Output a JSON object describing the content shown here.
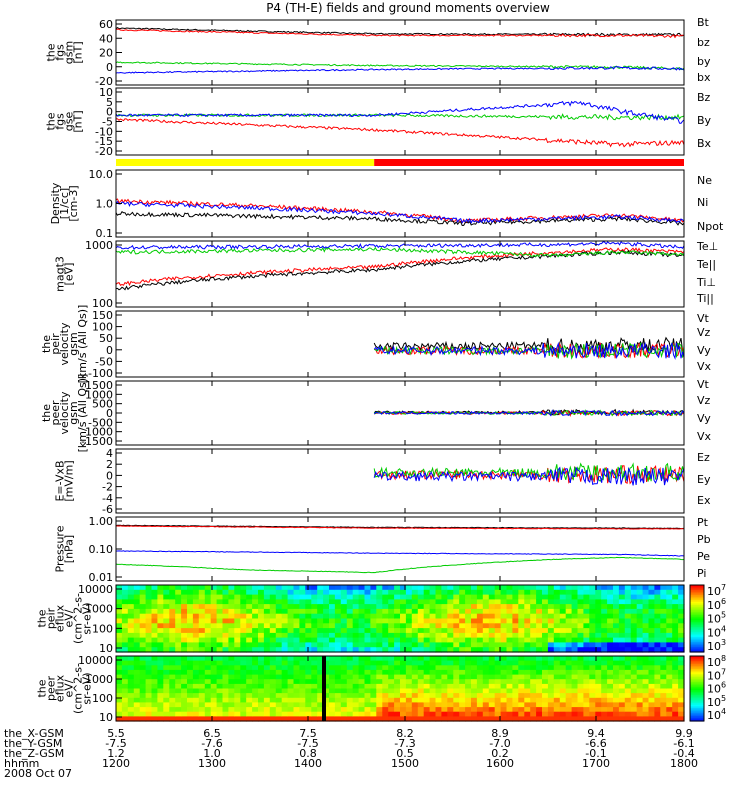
{
  "title": "P4 (TH-E) fields and ground moments overview",
  "colors": {
    "black": "#000000",
    "red": "#ff0000",
    "green": "#00cc00",
    "blue": "#0000ff",
    "yellow": "#ffff00"
  },
  "chart_data": [
    {
      "type": "line",
      "ylabel": [
        "the",
        "fgs",
        "gsm",
        "[nT]"
      ],
      "yticks": [
        "60",
        "40",
        "20",
        "0",
        "-20"
      ],
      "ylim": [
        -20,
        60
      ],
      "series": [
        {
          "name": "Bt",
          "color": "black",
          "x": [
            5.5,
            7.5,
            9.4,
            9.9
          ],
          "values": [
            50,
            43,
            42,
            42
          ]
        },
        {
          "name": "bz",
          "color": "red",
          "x": [
            5.5,
            7.5,
            9.4,
            9.9
          ],
          "values": [
            48,
            41,
            41,
            40
          ]
        },
        {
          "name": "by",
          "color": "green",
          "x": [
            5.5,
            7.5,
            9.4,
            9.9
          ],
          "values": [
            8,
            4,
            2,
            0
          ]
        },
        {
          "name": "bx",
          "color": "blue",
          "x": [
            5.5,
            7.5,
            8.2,
            9.4,
            9.9
          ],
          "values": [
            -5,
            -1,
            0,
            1,
            0
          ]
        }
      ]
    },
    {
      "type": "line",
      "ylabel": [
        "the",
        "fgs",
        "gse",
        "[nT]"
      ],
      "yticks": [
        "10",
        "5",
        "0",
        "-5",
        "-10",
        "-15",
        "-20"
      ],
      "ylim": [
        -20,
        12
      ],
      "series": [
        {
          "name": "Bz",
          "color": "red",
          "x": [
            5.5,
            7.5,
            8.9,
            9.4,
            9.9
          ],
          "values": [
            -3,
            -8,
            -13,
            -15,
            -14
          ]
        },
        {
          "name": "By",
          "color": "green",
          "x": [
            5.5,
            7.5,
            9.4,
            9.9
          ],
          "values": [
            -1,
            -1,
            -2,
            -2
          ]
        },
        {
          "name": "Bx",
          "color": "blue",
          "x": [
            5.5,
            7.5,
            9.1,
            9.4,
            9.9
          ],
          "values": [
            -1,
            -1,
            5,
            1,
            -4
          ]
        }
      ]
    },
    {
      "type": "line",
      "log": true,
      "ylabel": [
        "Density",
        "[1/cc]",
        "[cm-3]"
      ],
      "yticks": [
        "10.0",
        "1.0",
        "0.1"
      ],
      "ylim": [
        0.1,
        10
      ],
      "series": [
        {
          "name": "Ne",
          "color": "red",
          "x": [
            5.5,
            7.5,
            8.2,
            9.4,
            9.9
          ],
          "values": [
            1.2,
            0.55,
            0.3,
            0.45,
            0.3
          ]
        },
        {
          "name": "Ni",
          "color": "black",
          "x": [
            5.5,
            7.5,
            8.2,
            9.4,
            9.9
          ],
          "values": [
            0.5,
            0.35,
            0.25,
            0.35,
            0.25
          ]
        },
        {
          "name": "Npot",
          "color": "blue",
          "x": [
            5.5,
            7.5,
            8.2,
            9.4,
            9.9
          ],
          "values": [
            1.0,
            0.5,
            0.3,
            0.4,
            0.3
          ]
        }
      ]
    },
    {
      "type": "line",
      "log": true,
      "ylabel": [
        "magt3",
        "[eV]"
      ],
      "yticks": [
        "1000",
        "100"
      ],
      "ylim": [
        50,
        3000
      ],
      "series": [
        {
          "name": "Te⊥",
          "color": "red",
          "x": [
            5.5,
            7.5,
            8.9,
            9.4,
            9.9
          ],
          "values": [
            200,
            600,
            1500,
            1800,
            1500
          ]
        },
        {
          "name": "Te||",
          "color": "black",
          "x": [
            5.5,
            7.5,
            8.9,
            9.4,
            9.9
          ],
          "values": [
            150,
            500,
            1200,
            1500,
            1200
          ]
        },
        {
          "name": "Ti⊥",
          "color": "blue",
          "x": [
            5.5,
            7.5,
            8.9,
            9.4,
            9.9
          ],
          "values": [
            2000,
            2200,
            2400,
            2600,
            2000
          ]
        },
        {
          "name": "Ti||",
          "color": "green",
          "x": [
            5.5,
            7.5,
            8.9,
            9.4,
            9.9
          ],
          "values": [
            1500,
            1800,
            1200,
            1500,
            1300
          ]
        }
      ]
    },
    {
      "type": "line",
      "ylabel": [
        "the",
        "peir",
        "velocity",
        "gsm",
        "[km/s (All Qs)]"
      ],
      "yticks": [
        "150",
        "100",
        "50",
        "0",
        "-50",
        "-100"
      ],
      "ylim": [
        -100,
        150
      ],
      "series": [
        {
          "name": "Vt",
          "color": "black",
          "x": [
            7.5,
            9.9
          ],
          "values": [
            15,
            20
          ]
        },
        {
          "name": "Vz",
          "color": "red",
          "x": [
            7.5,
            9.9
          ],
          "values": [
            0,
            0
          ]
        },
        {
          "name": "Vy",
          "color": "green",
          "x": [
            7.5,
            9.9
          ],
          "values": [
            0,
            0
          ]
        },
        {
          "name": "Vx",
          "color": "blue",
          "x": [
            7.5,
            9.9
          ],
          "values": [
            0,
            0
          ]
        }
      ]
    },
    {
      "type": "line",
      "ylabel": [
        "the",
        "peer",
        "velocity",
        "gsm",
        "[km/s (All Qs)]"
      ],
      "yticks": [
        "1500",
        "1000",
        "500",
        "0",
        "-500",
        "-1000",
        "-1500"
      ],
      "ylim": [
        -1500,
        1500
      ],
      "series": [
        {
          "name": "Vt",
          "color": "black",
          "x": [
            7.5,
            9.9
          ],
          "values": [
            30,
            40
          ]
        },
        {
          "name": "Vz",
          "color": "red",
          "x": [
            7.5,
            9.9
          ],
          "values": [
            0,
            0
          ]
        },
        {
          "name": "Vy",
          "color": "green",
          "x": [
            7.5,
            9.9
          ],
          "values": [
            0,
            0
          ]
        },
        {
          "name": "Vx",
          "color": "blue",
          "x": [
            7.5,
            9.9
          ],
          "values": [
            0,
            0
          ]
        }
      ]
    },
    {
      "type": "line",
      "ylabel": [
        "E=-VxB",
        "[mV/m]"
      ],
      "yticks": [
        "4",
        "2",
        "0",
        "-2",
        "-4",
        "-6"
      ],
      "ylim": [
        -6,
        4
      ],
      "series": [
        {
          "name": "Ez",
          "color": "red",
          "x": [
            7.5,
            9.9
          ],
          "values": [
            0,
            0
          ]
        },
        {
          "name": "Ey",
          "color": "green",
          "x": [
            7.5,
            9.9
          ],
          "values": [
            0.3,
            0.3
          ]
        },
        {
          "name": "Ex",
          "color": "blue",
          "x": [
            7.5,
            9.9
          ],
          "values": [
            -0.3,
            -0.3
          ]
        }
      ]
    },
    {
      "type": "line",
      "log": true,
      "ylabel": [
        "Pressure",
        "[nPa]"
      ],
      "yticks": [
        "1.00",
        "0.10",
        "0.01"
      ],
      "ylim": [
        0.01,
        2
      ],
      "series": [
        {
          "name": "Pt",
          "color": "black",
          "x": [
            5.5,
            7.5,
            9.4,
            9.9
          ],
          "values": [
            1.0,
            0.85,
            0.8,
            0.78
          ]
        },
        {
          "name": "Pb",
          "color": "red",
          "x": [
            5.5,
            7.5,
            9.4,
            9.9
          ],
          "values": [
            0.95,
            0.8,
            0.75,
            0.75
          ]
        },
        {
          "name": "Pe",
          "color": "green",
          "x": [
            5.5,
            6.5,
            7.5,
            8.2,
            8.9,
            9.4,
            9.9
          ],
          "values": [
            0.04,
            0.025,
            0.02,
            0.04,
            0.06,
            0.07,
            0.06
          ]
        },
        {
          "name": "Pi",
          "color": "blue",
          "x": [
            5.5,
            7.5,
            9.4,
            9.9
          ],
          "values": [
            0.12,
            0.1,
            0.09,
            0.08
          ]
        }
      ]
    },
    {
      "type": "heatmap",
      "log": true,
      "ylabel": [
        "the",
        "peir",
        "eflux",
        "eV/",
        "(cm^2-s-",
        "sr-eV)"
      ],
      "yticks": [
        "10000",
        "1000",
        "100",
        "10"
      ],
      "ylim": [
        7,
        20000
      ],
      "colorbar_ticks": [
        "10^7",
        "10^6",
        "10^5",
        "10^4",
        "10^3"
      ]
    },
    {
      "type": "heatmap",
      "log": true,
      "ylabel": [
        "the",
        "peer",
        "eflux",
        "eV/",
        "(cm^2-s-",
        "sr-eV)"
      ],
      "yticks": [
        "10000",
        "1000",
        "100",
        "10"
      ],
      "ylim": [
        7,
        20000
      ],
      "colorbar_ticks": [
        "10^8",
        "10^7",
        "10^6",
        "10^5",
        "10^4"
      ]
    }
  ],
  "legends": [
    [
      {
        "label": "Bt",
        "color": "#000000"
      },
      {
        "label": "bz",
        "color": "#ff0000"
      },
      {
        "label": "by",
        "color": "#00cc00"
      },
      {
        "label": "bx",
        "color": "#0000ff"
      }
    ],
    [
      {
        "label": "Bz",
        "color": "#ff0000"
      },
      {
        "label": "By",
        "color": "#00cc00"
      },
      {
        "label": "Bx",
        "color": "#0000ff"
      }
    ],
    [
      {
        "label": "Ne",
        "color": "#ff0000"
      },
      {
        "label": "Ni",
        "color": "#000000"
      },
      {
        "label": "Npot",
        "color": "#0000ff"
      }
    ],
    [
      {
        "label": "Te⊥",
        "color": "#ff0000"
      },
      {
        "label": "Te||",
        "color": "#000000"
      },
      {
        "label": "Ti⊥",
        "color": "#0000ff"
      },
      {
        "label": "Ti||",
        "color": "#00cc00"
      }
    ],
    [
      {
        "label": "Vt",
        "color": "#000000"
      },
      {
        "label": "Vz",
        "color": "#ff0000"
      },
      {
        "label": "Vy",
        "color": "#00cc00"
      },
      {
        "label": "Vx",
        "color": "#0000ff"
      }
    ],
    [
      {
        "label": "Vt",
        "color": "#000000"
      },
      {
        "label": "Vz",
        "color": "#ff0000"
      },
      {
        "label": "Vy",
        "color": "#00cc00"
      },
      {
        "label": "Vx",
        "color": "#0000ff"
      }
    ],
    [
      {
        "label": "Ez",
        "color": "#ff0000"
      },
      {
        "label": "Ey",
        "color": "#00cc00"
      },
      {
        "label": "Ex",
        "color": "#0000ff"
      }
    ],
    [
      {
        "label": "Pt",
        "color": "#000000"
      },
      {
        "label": "Pb",
        "color": "#ff0000"
      },
      {
        "label": "Pe",
        "color": "#00cc00"
      },
      {
        "label": "Pi",
        "color": "#0000ff"
      }
    ]
  ],
  "mode_bar": {
    "segments": [
      {
        "color": "yellow",
        "x_from": 5.5,
        "x_to": 7.5
      },
      {
        "color": "red",
        "x_from": 7.5,
        "x_to": 9.9
      }
    ]
  },
  "x_axis": {
    "rows": [
      {
        "label": "the_X-GSM",
        "values": [
          "5.5",
          "6.5",
          "7.5",
          "8.2",
          "8.9",
          "9.4",
          "9.9"
        ]
      },
      {
        "label": "the_Y-GSM",
        "values": [
          "-7.5",
          "-7.6",
          "-7.5",
          "-7.3",
          "-7.0",
          "-6.6",
          "-6.1"
        ]
      },
      {
        "label": "the_Z-GSM",
        "values": [
          "1.2",
          "1.0",
          "0.8",
          "0.5",
          "0.2",
          "-0.1",
          "-0.4"
        ]
      },
      {
        "label": "hhmm",
        "values": [
          "1200",
          "1300",
          "1400",
          "1500",
          "1600",
          "1700",
          "1800"
        ]
      }
    ],
    "date": "2008 Oct 07"
  }
}
